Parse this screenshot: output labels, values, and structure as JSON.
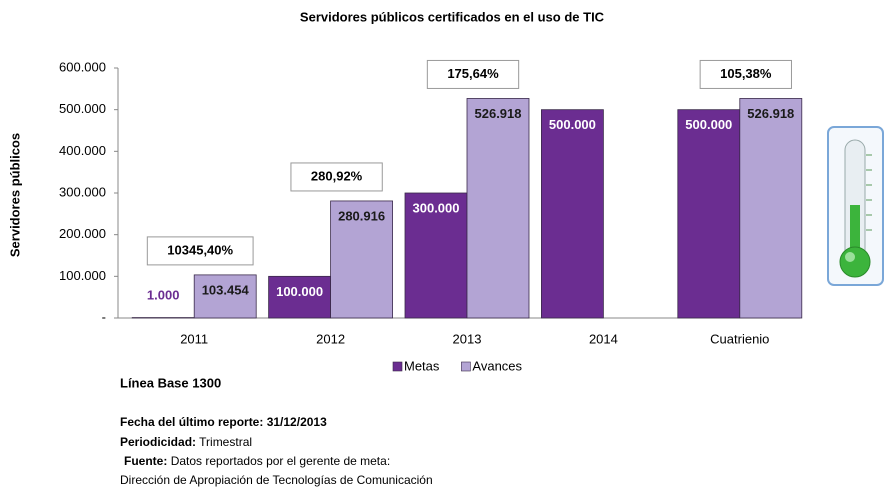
{
  "chart_data": {
    "type": "bar",
    "title": "Servidores públicos certificados en el uso de TIC",
    "y_label": "Servidores públicos",
    "categories": [
      "2011",
      "2012",
      "2013",
      "2014",
      "Cuatrienio"
    ],
    "series": [
      {
        "name": "Metas",
        "color": "#6b2d91",
        "values": [
          1000,
          100000,
          300000,
          500000,
          500000
        ],
        "value_labels": [
          "1.000",
          "100.000",
          "300.000",
          "500.000",
          "500.000"
        ]
      },
      {
        "name": "Avances",
        "color": "#b3a4d4",
        "values": [
          103454,
          280916,
          526918,
          null,
          526918
        ],
        "value_labels": [
          "103.454",
          "280.916",
          "526.918",
          null,
          "526.918"
        ]
      }
    ],
    "annotations": [
      "10345,40%",
      "280,92%",
      "175,64%",
      null,
      "105,38%"
    ],
    "ylim": [
      0,
      600000
    ],
    "yticks": [
      {
        "value": 0,
        "label": "-"
      },
      {
        "value": 100000,
        "label": "100.000"
      },
      {
        "value": 200000,
        "label": "200.000"
      },
      {
        "value": 300000,
        "label": "300.000"
      },
      {
        "value": 400000,
        "label": "400.000"
      },
      {
        "value": 500000,
        "label": "500.000"
      },
      {
        "value": 600000,
        "label": "600.000"
      }
    ],
    "grid": false,
    "legend": "bottom"
  },
  "footer": {
    "baseline": "Línea Base 1300",
    "report_date_label": "Fecha del último reporte:",
    "report_date": "31/12/2013",
    "period_label": "Periodicidad:",
    "period": "Trimestral",
    "source_label": "Fuente:",
    "source": "Datos reportados por el gerente de meta:",
    "source_line2": "Dirección de Apropiación de Tecnologías de Comunicación"
  }
}
